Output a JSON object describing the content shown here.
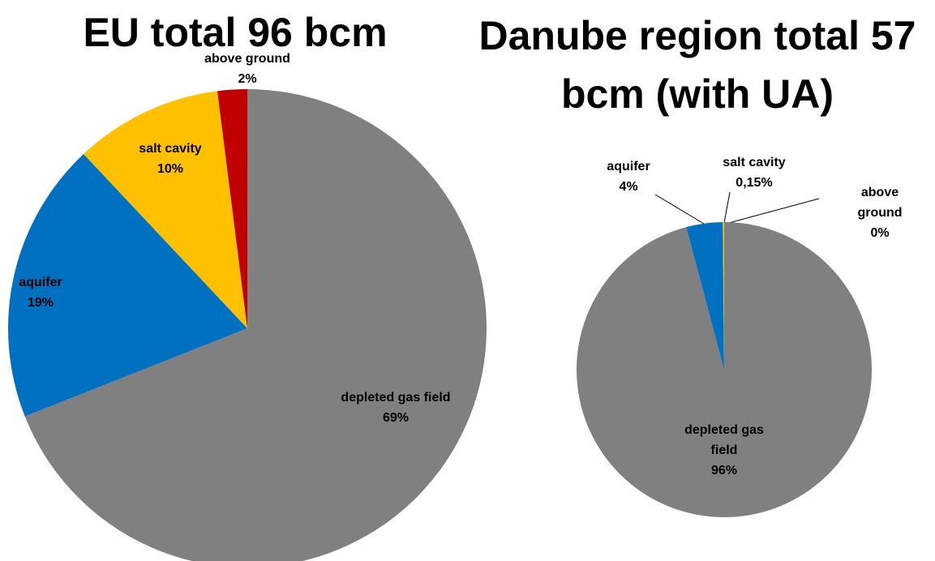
{
  "chart_data": [
    {
      "type": "pie",
      "title": "EU total 96 bcm",
      "categories": [
        "depleted gas field",
        "aquifer",
        "salt cavity",
        "above ground"
      ],
      "values": [
        69,
        19,
        10,
        2
      ],
      "value_labels": [
        "69%",
        "19%",
        "10%",
        "2%"
      ],
      "colors": [
        "#808080",
        "#0070c0",
        "#ffc000",
        "#c00000"
      ]
    },
    {
      "type": "pie",
      "title": "Danube region total 57 bcm (with UA)",
      "categories": [
        "depleted gas field",
        "aquifer",
        "salt cavity",
        "above ground"
      ],
      "values": [
        96,
        4,
        0.15,
        0
      ],
      "value_labels": [
        "96%",
        "4%",
        "0,15%",
        "0%"
      ],
      "colors": [
        "#808080",
        "#0070c0",
        "#ffc000",
        "#c00000"
      ]
    }
  ]
}
